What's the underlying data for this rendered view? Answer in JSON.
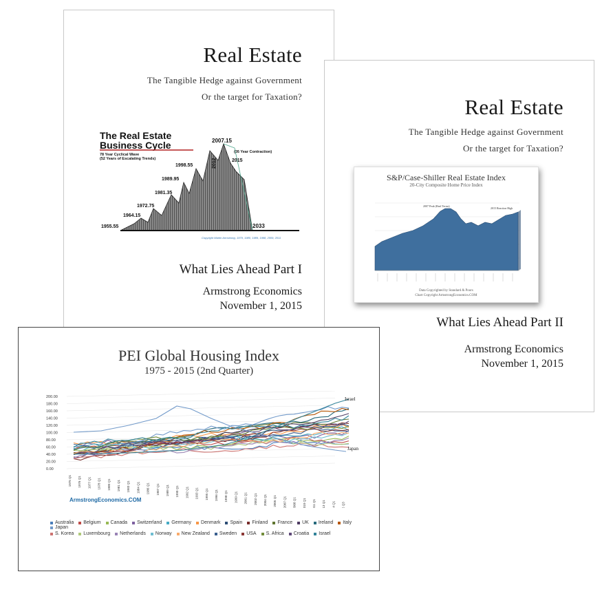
{
  "page1": {
    "title": "Real Estate",
    "subtitle1": "The Tangible Hedge against Government",
    "subtitle2": "Or the target for Taxation?",
    "cycle": {
      "heading1": "The Real Estate",
      "heading2": "Business Cycle",
      "note1": "78 Year Cyclical Wave",
      "note2": "(52 Years of Escalating Trends)",
      "contraction": "(26 Year Contraction)",
      "copyright": "Copyright Martin Armstrong, 1979, 1980, 1989, 1998, 2009, 2011",
      "labels": [
        "1955.55",
        "1964.15",
        "1972.75",
        "1981.35",
        "1989.95",
        "1998.55",
        "2007.15",
        "2012",
        "2015",
        "2033"
      ]
    },
    "what": "What Lies Ahead Part I",
    "org": "Armstrong Economics",
    "date": "November 1, 2015"
  },
  "page2": {
    "title": "Real Estate",
    "subtitle1": "The Tangible Hedge against Government",
    "subtitle2": "Or the target for Taxation?",
    "caseshiller": {
      "title": "S&P/Case-Shiller Real Estate Index",
      "subtitle": "20-City Composite Home Price Index",
      "peak_label": "2007 Peak (Real Terms)",
      "reaction_label": "2015 Reaction High",
      "footer1": "Data Copyrighted by Standard & Poors",
      "footer2": "Chart Copyright ArmstrongEconomics.COM",
      "fill_color": "#3f6f9e"
    },
    "what": "What Lies Ahead Part II",
    "org": "Armstrong Economics",
    "date": "November 1, 2015"
  },
  "page3": {
    "title": "PEI Global Housing Index",
    "subtitle": "1975 - 2015 (2nd Quarter)",
    "y_ticks": [
      "200.00",
      "180.00",
      "160.00",
      "140.00",
      "120.00",
      "100.00",
      "80.00",
      "60.00",
      "40.00",
      "20.00",
      "0.00"
    ],
    "x_ticks": [
      "1975 Q1",
      "1976 Q1",
      "1977 Q1",
      "1978 Q1",
      "1980 Q1",
      "1981 Q1",
      "1983 Q1",
      "1984 Q1",
      "1986 Q1",
      "1987 Q1",
      "1989 Q1",
      "1990 Q1",
      "1992 Q1",
      "1993 Q1",
      "1995 Q1",
      "1996 Q1",
      "1998 Q1",
      "1999 Q1",
      "2001 Q1",
      "2002 Q1",
      "2004 Q1",
      "2005 Q1",
      "2007 Q1",
      "2008 Q1",
      "2010 Q1",
      "2011 Q1",
      "2013 Q1",
      "2014 Q1",
      "2015 Q3"
    ],
    "israel_label": "Israel",
    "japan_label": "Japan",
    "watermark": "ArmstrongEconomics.COM",
    "legend_row1": [
      {
        "name": "Australia",
        "color": "#4a7ebb"
      },
      {
        "name": "Belgium",
        "color": "#be4b48"
      },
      {
        "name": "Canada",
        "color": "#98b954"
      },
      {
        "name": "Switzerland",
        "color": "#7d60a0"
      },
      {
        "name": "Germany",
        "color": "#46aac5"
      },
      {
        "name": "Denmark",
        "color": "#f79646"
      },
      {
        "name": "Spain",
        "color": "#2c4d75"
      },
      {
        "name": "Finland",
        "color": "#772c2a"
      },
      {
        "name": "France",
        "color": "#5f7530"
      },
      {
        "name": "UK",
        "color": "#4d3b62"
      },
      {
        "name": "Ireland",
        "color": "#276a7c"
      },
      {
        "name": "Italy",
        "color": "#b65708"
      },
      {
        "name": "Japan",
        "color": "#729aca"
      }
    ],
    "legend_row2": [
      {
        "name": "S. Korea",
        "color": "#cd7371"
      },
      {
        "name": "Luxembourg",
        "color": "#afc97a"
      },
      {
        "name": "Netherlands",
        "color": "#9983b5"
      },
      {
        "name": "Norway",
        "color": "#6fbdd1"
      },
      {
        "name": "New Zealand",
        "color": "#f9ab6b"
      },
      {
        "name": "Sweden",
        "color": "#3a5f8f"
      },
      {
        "name": "USA",
        "color": "#8c3836"
      },
      {
        "name": "S. Africa",
        "color": "#728d3b"
      },
      {
        "name": "Croatia",
        "color": "#5e4878"
      },
      {
        "name": "Israel",
        "color": "#318399"
      }
    ]
  }
}
